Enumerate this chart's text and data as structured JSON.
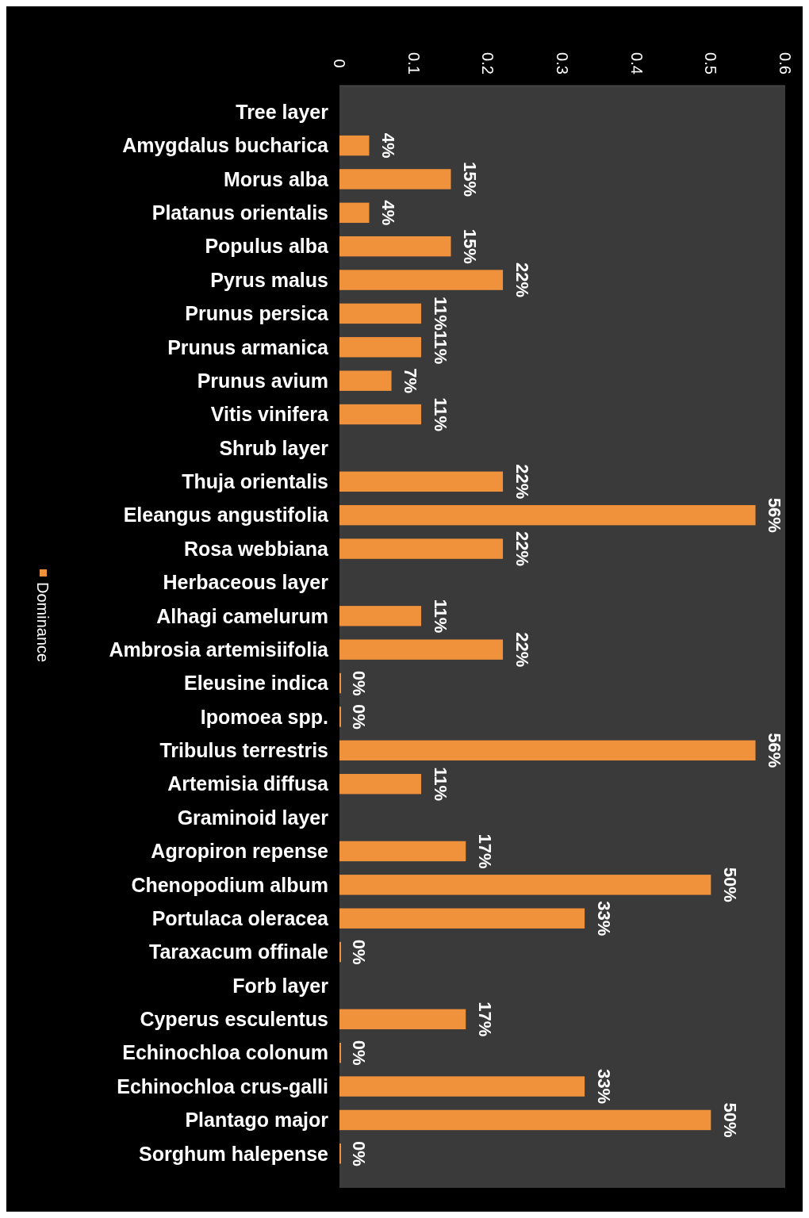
{
  "chart_data": {
    "type": "bar",
    "orientation": "horizontal",
    "categories": [
      "Tree layer",
      "Amygdalus bucharica",
      "Morus alba",
      "Platanus orientalis",
      "Populus alba",
      "Pyrus malus",
      "Prunus persica",
      "Prunus armanica",
      "Prunus avium",
      "Vitis vinifera",
      "Shrub layer",
      "Thuja orientalis",
      "Eleangus angustifolia",
      "Rosa webbiana",
      "Herbaceous layer",
      "Alhagi camelurum",
      "Ambrosia artemisiifolia",
      "Eleusine indica",
      "Ipomoea spp.",
      "Tribulus terrestris",
      "Artemisia diffusa",
      "Graminoid layer",
      "Agropiron repense",
      "Chenopodium album",
      "Portulaca oleracea",
      "Taraxacum offinale",
      "Forb layer",
      "Cyperus esculentus",
      "Echinochloa colonum",
      "Echinochloa crus-galli",
      "Plantago major",
      "Sorghum halepense"
    ],
    "series": [
      {
        "name": "Dominance",
        "color": "#f0923c",
        "values": [
          null,
          0.04,
          0.15,
          0.04,
          0.15,
          0.22,
          0.11,
          0.11,
          0.07,
          0.11,
          null,
          0.22,
          0.56,
          0.22,
          null,
          0.11,
          0.22,
          0,
          0,
          0.56,
          0.11,
          null,
          0.17,
          0.5,
          0.33,
          0,
          null,
          0.17,
          0,
          0.33,
          0.5,
          0
        ],
        "value_labels": [
          null,
          "4%",
          "15%",
          "4%",
          "15%",
          "22%",
          "11%",
          "11%",
          "7%",
          "11%",
          null,
          "22%",
          "56%",
          "22%",
          null,
          "11%",
          "22%",
          "0%",
          "0%",
          "56%",
          "11%",
          null,
          "17%",
          "50%",
          "33%",
          "0%",
          null,
          "17%",
          "0%",
          "33%",
          "50%",
          "0%"
        ]
      }
    ],
    "xlim": [
      0,
      0.6
    ],
    "xticks": [
      0,
      0.1,
      0.2,
      0.3,
      0.4,
      0.5,
      0.6
    ],
    "legend": "left",
    "grid": false
  }
}
